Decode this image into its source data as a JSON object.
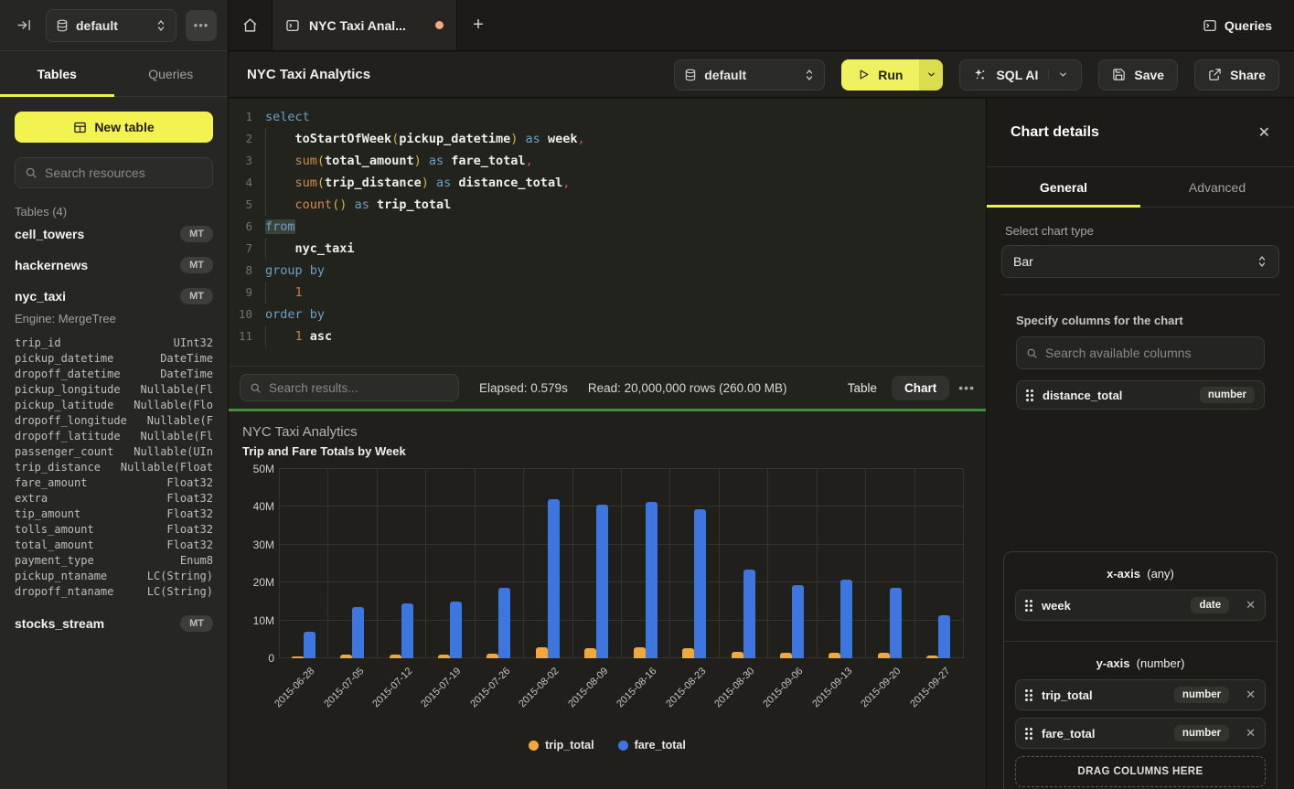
{
  "colors": {
    "accent_yellow": "#F2F251",
    "bar_blue": "#3D76DF",
    "bar_yellow": "#F2A93B",
    "run_green_line": "#3E8E3C",
    "tab_dot": "#F2A987"
  },
  "sidebar": {
    "database": "default",
    "more_label": "...",
    "tabs": [
      {
        "label": "Tables",
        "active": true
      },
      {
        "label": "Queries",
        "active": false
      }
    ],
    "new_table_label": "New table",
    "search_placeholder": "Search resources",
    "section_label": "Tables (4)",
    "tables": [
      {
        "name": "cell_towers",
        "badge": "MT"
      },
      {
        "name": "hackernews",
        "badge": "MT"
      },
      {
        "name": "nyc_taxi",
        "badge": "MT",
        "engine": "Engine: MergeTree",
        "columns": [
          [
            "trip_id",
            "UInt32"
          ],
          [
            "pickup_datetime",
            "DateTime"
          ],
          [
            "dropoff_datetime",
            "DateTime"
          ],
          [
            "pickup_longitude",
            "Nullable(Fl"
          ],
          [
            "pickup_latitude",
            "Nullable(Flo"
          ],
          [
            "dropoff_longitude",
            "Nullable(F"
          ],
          [
            "dropoff_latitude",
            "Nullable(Fl"
          ],
          [
            "passenger_count",
            "Nullable(UIn"
          ],
          [
            "trip_distance",
            "Nullable(Float"
          ],
          [
            "fare_amount",
            "Float32"
          ],
          [
            "extra",
            "Float32"
          ],
          [
            "tip_amount",
            "Float32"
          ],
          [
            "tolls_amount",
            "Float32"
          ],
          [
            "total_amount",
            "Float32"
          ],
          [
            "payment_type",
            "Enum8"
          ],
          [
            "pickup_ntaname",
            "LC(String)"
          ],
          [
            "dropoff_ntaname",
            "LC(String)"
          ]
        ]
      },
      {
        "name": "stocks_stream",
        "badge": "MT"
      }
    ]
  },
  "topbar": {
    "tab_title": "NYC Taxi Anal...",
    "plus_label": "+",
    "queries_label": "Queries"
  },
  "toolbar": {
    "title": "NYC Taxi Analytics",
    "database": "default",
    "run_label": "Run",
    "sqlai_label": "SQL AI",
    "save_label": "Save",
    "share_label": "Share"
  },
  "editor": {
    "lines": [
      {
        "n": "1",
        "tokens": [
          {
            "c": "kw",
            "t": "select"
          }
        ]
      },
      {
        "n": "2",
        "g": true,
        "tokens": [
          {
            "c": "pl",
            "t": "    "
          },
          {
            "c": "fnb",
            "t": "toStartOfWeek"
          },
          {
            "c": "p",
            "t": "("
          },
          {
            "c": "id",
            "t": "pickup_datetime"
          },
          {
            "c": "p",
            "t": ")"
          },
          {
            "c": "pl",
            "t": " "
          },
          {
            "c": "kw",
            "t": "as"
          },
          {
            "c": "pl",
            "t": " "
          },
          {
            "c": "id",
            "t": "week"
          },
          {
            "c": "cm",
            "t": ","
          }
        ]
      },
      {
        "n": "3",
        "g": true,
        "tokens": [
          {
            "c": "pl",
            "t": "    "
          },
          {
            "c": "fn",
            "t": "sum"
          },
          {
            "c": "p",
            "t": "("
          },
          {
            "c": "id",
            "t": "total_amount"
          },
          {
            "c": "p",
            "t": ")"
          },
          {
            "c": "pl",
            "t": " "
          },
          {
            "c": "kw",
            "t": "as"
          },
          {
            "c": "pl",
            "t": " "
          },
          {
            "c": "id",
            "t": "fare_total"
          },
          {
            "c": "cm",
            "t": ","
          }
        ]
      },
      {
        "n": "4",
        "g": true,
        "tokens": [
          {
            "c": "pl",
            "t": "    "
          },
          {
            "c": "fn",
            "t": "sum"
          },
          {
            "c": "p",
            "t": "("
          },
          {
            "c": "id",
            "t": "trip_distance"
          },
          {
            "c": "p",
            "t": ")"
          },
          {
            "c": "pl",
            "t": " "
          },
          {
            "c": "kw",
            "t": "as"
          },
          {
            "c": "pl",
            "t": " "
          },
          {
            "c": "id",
            "t": "distance_total"
          },
          {
            "c": "cm",
            "t": ","
          }
        ]
      },
      {
        "n": "5",
        "g": true,
        "tokens": [
          {
            "c": "pl",
            "t": "    "
          },
          {
            "c": "fn",
            "t": "count"
          },
          {
            "c": "p",
            "t": "()"
          },
          {
            "c": "pl",
            "t": " "
          },
          {
            "c": "kw",
            "t": "as"
          },
          {
            "c": "pl",
            "t": " "
          },
          {
            "c": "id",
            "t": "trip_total"
          }
        ]
      },
      {
        "n": "6",
        "tokens": [
          {
            "c": "kw hl",
            "t": "from"
          }
        ]
      },
      {
        "n": "7",
        "g": true,
        "tokens": [
          {
            "c": "pl",
            "t": "    "
          },
          {
            "c": "id",
            "t": "nyc_taxi"
          }
        ]
      },
      {
        "n": "8",
        "tokens": [
          {
            "c": "kw",
            "t": "group by"
          }
        ]
      },
      {
        "n": "9",
        "g": true,
        "tokens": [
          {
            "c": "pl",
            "t": "    "
          },
          {
            "c": "num",
            "t": "1"
          }
        ]
      },
      {
        "n": "10",
        "tokens": [
          {
            "c": "kw",
            "t": "order by"
          }
        ]
      },
      {
        "n": "11",
        "g": true,
        "tokens": [
          {
            "c": "pl",
            "t": "    "
          },
          {
            "c": "num",
            "t": "1"
          },
          {
            "c": "pl",
            "t": " "
          },
          {
            "c": "id",
            "t": "asc"
          }
        ]
      }
    ]
  },
  "results": {
    "search_placeholder": "Search results...",
    "elapsed": "Elapsed: 0.579s",
    "read": "Read: 20,000,000 rows (260.00 MB)",
    "view_tabs": [
      {
        "label": "Table",
        "active": false
      },
      {
        "label": "Chart",
        "active": true
      }
    ],
    "more_label": "..."
  },
  "chart_data": {
    "type": "bar",
    "title": "NYC Taxi Analytics",
    "subtitle": "Trip and Fare Totals by Week",
    "categories": [
      "2015-06-28",
      "2015-07-05",
      "2015-07-12",
      "2015-07-19",
      "2015-07-26",
      "2015-08-02",
      "2015-08-09",
      "2015-08-16",
      "2015-08-23",
      "2015-08-30",
      "2015-09-06",
      "2015-09-13",
      "2015-09-20",
      "2015-09-27"
    ],
    "series": [
      {
        "name": "trip_total",
        "color": "#F2A93B",
        "values": [
          500000,
          1000000,
          1000000,
          1000000,
          1300000,
          2800000,
          2700000,
          2800000,
          2600000,
          1700000,
          1500000,
          1500000,
          1500000,
          800000
        ]
      },
      {
        "name": "fare_total",
        "color": "#3D76DF",
        "values": [
          7000000,
          13500000,
          14500000,
          15000000,
          18700000,
          42000000,
          40700000,
          41200000,
          39300000,
          23500000,
          19400000,
          20800000,
          18700000,
          11400000
        ]
      }
    ],
    "ylim": [
      0,
      50000000
    ],
    "yticks": [
      {
        "value": 0,
        "label": "0"
      },
      {
        "value": 10000000,
        "label": "10M"
      },
      {
        "value": 20000000,
        "label": "20M"
      },
      {
        "value": 30000000,
        "label": "30M"
      },
      {
        "value": 40000000,
        "label": "40M"
      },
      {
        "value": 50000000,
        "label": "50M"
      }
    ],
    "grid": true,
    "legend_position": "bottom"
  },
  "right_panel": {
    "title": "Chart details",
    "tabs": [
      {
        "label": "General",
        "active": true
      },
      {
        "label": "Advanced",
        "active": false
      }
    ],
    "chart_type_label": "Select chart type",
    "chart_type_value": "Bar",
    "columns_label": "Specify columns for the chart",
    "columns_search_placeholder": "Search available columns",
    "available_columns": [
      {
        "name": "distance_total",
        "type": "number"
      }
    ],
    "x_axis": {
      "title": "x-axis",
      "hint": "(any)",
      "items": [
        {
          "name": "week",
          "type": "date"
        }
      ]
    },
    "y_axis": {
      "title": "y-axis",
      "hint": "(number)",
      "items": [
        {
          "name": "trip_total",
          "type": "number"
        },
        {
          "name": "fare_total",
          "type": "number"
        }
      ]
    },
    "drop_label": "DRAG COLUMNS HERE"
  }
}
